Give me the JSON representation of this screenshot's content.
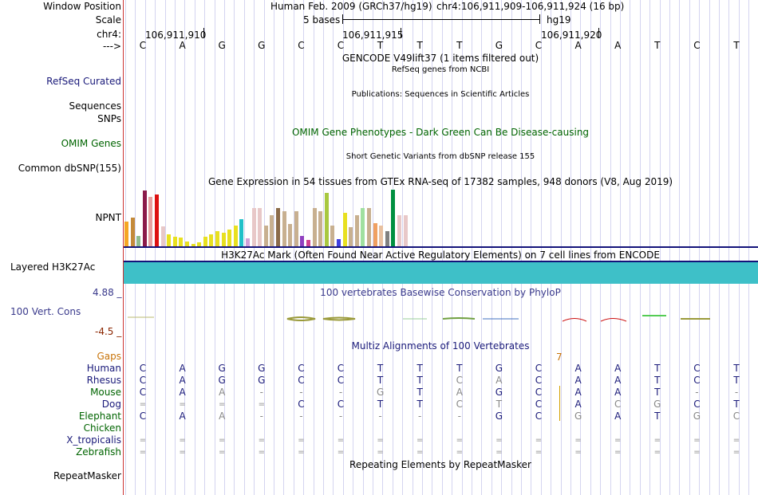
{
  "labels": {
    "window_position": "Window Position",
    "scale": "Scale",
    "chr": "chr4:",
    "arrow": "--->",
    "refseq": "RefSeq Curated",
    "sequences": "Sequences",
    "snps": "SNPs",
    "omim": "OMIM Genes",
    "dbsnp": "Common dbSNP(155)",
    "npnt": "NPNT",
    "layered": "Layered H3K27Ac",
    "phylop_max": "4.88 _",
    "vert_cons": "100 Vert. Cons",
    "phylop_min": "-4.5 _",
    "gaps": "Gaps",
    "repeatmasker": "RepeatMasker"
  },
  "header": {
    "assembly": "Human Feb. 2009 (GRCh37/hg19)",
    "position": "chr4:106,911,909-106,911,924 (16 bp)",
    "scale_text": "5 bases",
    "scale_db": "hg19",
    "coords": [
      "106,911,910",
      "106,911,915",
      "106,911,920"
    ]
  },
  "reference_bases": [
    "C",
    "A",
    "G",
    "G",
    "C",
    "C",
    "T",
    "T",
    "T",
    "G",
    "C",
    "A",
    "A",
    "T",
    "C",
    "T"
  ],
  "track_titles": {
    "gencode": "GENCODE V49lift37 (1 items filtered out)",
    "refseq": "RefSeq genes from NCBI",
    "publications": "Publications: Sequences in Scientific Articles",
    "omim": "OMIM Gene Phenotypes - Dark Green Can Be Disease-causing",
    "dbsnp": "Short Genetic Variants from dbSNP release 155",
    "gtex": "Gene Expression in 54 tissues from GTEx RNA-seq of 17382 samples, 948 donors (V8, Aug 2019)",
    "h3k27ac": "H3K27Ac Mark (Often Found Near Active Regulatory Elements) on 7 cell lines from ENCODE",
    "phylop": "100 vertebrates Basewise Conservation by PhyloP",
    "multiz": "Multiz Alignments of 100 Vertebrates",
    "repeatmasker": "Repeating Elements by RepeatMasker"
  },
  "gaps_value": "7",
  "colors": {
    "refseq_label": "#1a1a7a",
    "omim": "#006400",
    "phylop": "#3a3a8c",
    "phylop_neg": "#8b2500",
    "gaps": "#c8740a",
    "separator": "#cc3333",
    "h3k": "#3ec0c8"
  },
  "gtex_values": [
    {
      "color": "#f5a623",
      "v": 0.45
    },
    {
      "color": "#c48a3a",
      "v": 0.52
    },
    {
      "color": "#8fbc8f",
      "v": 0.2
    },
    {
      "color": "#8b1a4a",
      "v": 0.98
    },
    {
      "color": "#e8a0a0",
      "v": 0.88
    },
    {
      "color": "#dd1111",
      "v": 0.92
    },
    {
      "color": "#e8c8c8",
      "v": 0.36
    },
    {
      "color": "#e8e020",
      "v": 0.22
    },
    {
      "color": "#e8e020",
      "v": 0.18
    },
    {
      "color": "#e8e020",
      "v": 0.16
    },
    {
      "color": "#e8e020",
      "v": 0.1
    },
    {
      "color": "#e8e020",
      "v": 0.05
    },
    {
      "color": "#e8e020",
      "v": 0.08
    },
    {
      "color": "#e8e020",
      "v": 0.18
    },
    {
      "color": "#e8e020",
      "v": 0.22
    },
    {
      "color": "#e8e020",
      "v": 0.28
    },
    {
      "color": "#e8e020",
      "v": 0.25
    },
    {
      "color": "#e8e020",
      "v": 0.3
    },
    {
      "color": "#e8e020",
      "v": 0.38
    },
    {
      "color": "#20c0c8",
      "v": 0.48
    },
    {
      "color": "#d0a0d8",
      "v": 0.15
    },
    {
      "color": "#e8c8c8",
      "v": 0.68
    },
    {
      "color": "#e8c8c8",
      "v": 0.68
    },
    {
      "color": "#c8b090",
      "v": 0.38
    },
    {
      "color": "#c8b090",
      "v": 0.55
    },
    {
      "color": "#8b6b4a",
      "v": 0.68
    },
    {
      "color": "#c8b090",
      "v": 0.62
    },
    {
      "color": "#c8b090",
      "v": 0.4
    },
    {
      "color": "#c8b090",
      "v": 0.62
    },
    {
      "color": "#9040c0",
      "v": 0.2
    },
    {
      "color": "#d04090",
      "v": 0.12
    },
    {
      "color": "#c8b090",
      "v": 0.68
    },
    {
      "color": "#c8b090",
      "v": 0.62
    },
    {
      "color": "#a8c840",
      "v": 0.95
    },
    {
      "color": "#c8b090",
      "v": 0.38
    },
    {
      "color": "#4040e0",
      "v": 0.14
    },
    {
      "color": "#e8e020",
      "v": 0.6
    },
    {
      "color": "#c8b090",
      "v": 0.35
    },
    {
      "color": "#c8b090",
      "v": 0.55
    },
    {
      "color": "#a0e0a0",
      "v": 0.68
    },
    {
      "color": "#c8b090",
      "v": 0.68
    },
    {
      "color": "#f0a060",
      "v": 0.42
    },
    {
      "color": "#e8c0a0",
      "v": 0.38
    },
    {
      "color": "#808080",
      "v": 0.28
    },
    {
      "color": "#009040",
      "v": 1.0
    },
    {
      "color": "#e8c8c8",
      "v": 0.55
    },
    {
      "color": "#e8c8c8",
      "v": 0.55
    }
  ],
  "multiz_rows": [
    {
      "name": "Human",
      "color": "#1a1a7a",
      "bases": [
        "C",
        "A",
        "G",
        "G",
        "C",
        "C",
        "T",
        "T",
        "T",
        "G",
        "C",
        "A",
        "A",
        "T",
        "C",
        "T"
      ],
      "gray": [
        0,
        0,
        0,
        0,
        0,
        0,
        0,
        0,
        0,
        0,
        0,
        0,
        0,
        0,
        0,
        0
      ]
    },
    {
      "name": "Rhesus",
      "color": "#1a1a7a",
      "bases": [
        "C",
        "A",
        "G",
        "G",
        "C",
        "C",
        "T",
        "T",
        "C",
        "A",
        "C",
        "A",
        "A",
        "T",
        "C",
        "T"
      ],
      "gray": [
        0,
        0,
        0,
        0,
        0,
        0,
        0,
        0,
        1,
        1,
        0,
        0,
        0,
        0,
        0,
        0
      ]
    },
    {
      "name": "Mouse",
      "color": "#006400",
      "bases": [
        "C",
        "A",
        "A",
        "-",
        "-",
        "-",
        "G",
        "T",
        "A",
        "G",
        "C",
        "A",
        "A",
        "T",
        "-",
        "-"
      ],
      "gray": [
        0,
        0,
        1,
        1,
        1,
        1,
        1,
        0,
        1,
        0,
        0,
        0,
        0,
        0,
        1,
        1
      ]
    },
    {
      "name": "Dog",
      "color": "#1a1a7a",
      "bases": [
        "=",
        "=",
        "=",
        "=",
        "C",
        "C",
        "T",
        "T",
        "C",
        "T",
        "C",
        "A",
        "C",
        "G",
        "C",
        "T"
      ],
      "gray": [
        1,
        1,
        1,
        1,
        0,
        0,
        0,
        0,
        1,
        1,
        0,
        0,
        1,
        1,
        0,
        0
      ]
    },
    {
      "name": "Elephant",
      "color": "#006400",
      "bases": [
        "C",
        "A",
        "A",
        "-",
        "-",
        "-",
        "-",
        "-",
        "-",
        "G",
        "C",
        "G",
        "A",
        "T",
        "G",
        "C"
      ],
      "gray": [
        0,
        0,
        1,
        1,
        1,
        1,
        1,
        1,
        1,
        0,
        0,
        1,
        0,
        0,
        1,
        1
      ]
    },
    {
      "name": "Chicken",
      "color": "#006400",
      "bases": [
        "",
        "",
        "",
        "",
        "",
        "",
        "",
        "",
        "",
        "",
        "",
        "",
        "",
        "",
        "",
        ""
      ],
      "gray": [
        0,
        0,
        0,
        0,
        0,
        0,
        0,
        0,
        0,
        0,
        0,
        0,
        0,
        0,
        0,
        0
      ]
    },
    {
      "name": "X_tropicalis",
      "color": "#1a1a7a",
      "bases": [
        "=",
        "=",
        "=",
        "=",
        "=",
        "=",
        "=",
        "=",
        "=",
        "=",
        "=",
        "=",
        "=",
        "=",
        "=",
        "="
      ],
      "gray": [
        1,
        1,
        1,
        1,
        1,
        1,
        1,
        1,
        1,
        1,
        1,
        1,
        1,
        1,
        1,
        1
      ]
    },
    {
      "name": "Zebrafish",
      "color": "#006400",
      "bases": [
        "=",
        "=",
        "=",
        "=",
        "=",
        "=",
        "=",
        "=",
        "=",
        "=",
        "=",
        "=",
        "=",
        "=",
        "=",
        "="
      ],
      "gray": [
        1,
        1,
        1,
        1,
        1,
        1,
        1,
        1,
        1,
        1,
        1,
        1,
        1,
        1,
        1,
        1
      ]
    }
  ]
}
